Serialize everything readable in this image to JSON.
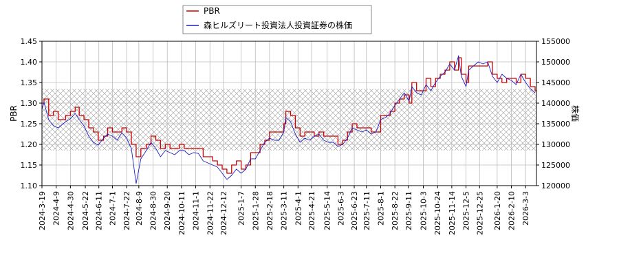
{
  "chart_data": {
    "type": "line",
    "title": "",
    "xlabel": "",
    "ylabel_left": "PBR",
    "ylabel_right": "株価",
    "ylim_left": [
      1.1,
      1.45
    ],
    "ylim_right": [
      120000,
      155000
    ],
    "yticks_left": [
      "1.10",
      "1.15",
      "1.20",
      "1.25",
      "1.30",
      "1.35",
      "1.40",
      "1.45"
    ],
    "yticks_right": [
      "120000",
      "125000",
      "130000",
      "135000",
      "140000",
      "145000",
      "150000",
      "155000"
    ],
    "xlim": [
      "2024-03-19",
      "2026-03-19"
    ],
    "xticks": [
      "2024-3-19",
      "2024-4-9",
      "2024-4-30",
      "2024-5-22",
      "2024-6-11",
      "2024-7-1",
      "2024-7-22",
      "2024-8-9",
      "2024-8-30",
      "2024-9-20",
      "2024-10-11",
      "2024-11-1",
      "2024-11-22",
      "2024-12-12",
      "2025-1-7",
      "2025-1-28",
      "2025-2-18",
      "2025-3-11",
      "2025-4-1",
      "2025-4-21",
      "2025-5-14",
      "2025-6-3",
      "2025-6-23",
      "2025-7-11",
      "2025-8-1",
      "2025-8-22",
      "2025-9-11",
      "2025-10-3",
      "2025-10-24",
      "2025-11-14",
      "2025-12-5",
      "2025-12-25",
      "2026-1-20",
      "2026-2-10",
      "2026-3-3"
    ],
    "legend_placement": "top-center",
    "grid": true,
    "hatched_band_left": [
      1.185,
      1.335
    ],
    "series": [
      {
        "name": "PBR",
        "color": "#cc0000",
        "axis": "left",
        "points": [
          [
            "2024-03-19",
            1.3
          ],
          [
            "2024-03-22",
            1.31
          ],
          [
            "2024-03-29",
            1.27
          ],
          [
            "2024-04-05",
            1.28
          ],
          [
            "2024-04-12",
            1.26
          ],
          [
            "2024-04-23",
            1.27
          ],
          [
            "2024-04-30",
            1.28
          ],
          [
            "2024-05-07",
            1.29
          ],
          [
            "2024-05-13",
            1.27
          ],
          [
            "2024-05-20",
            1.26
          ],
          [
            "2024-05-27",
            1.24
          ],
          [
            "2024-06-03",
            1.23
          ],
          [
            "2024-06-10",
            1.21
          ],
          [
            "2024-06-18",
            1.22
          ],
          [
            "2024-06-24",
            1.24
          ],
          [
            "2024-07-01",
            1.23
          ],
          [
            "2024-07-08",
            1.23
          ],
          [
            "2024-07-15",
            1.24
          ],
          [
            "2024-07-22",
            1.23
          ],
          [
            "2024-07-29",
            1.2
          ],
          [
            "2024-08-05",
            1.17
          ],
          [
            "2024-08-12",
            1.19
          ],
          [
            "2024-08-20",
            1.2
          ],
          [
            "2024-08-27",
            1.22
          ],
          [
            "2024-09-03",
            1.21
          ],
          [
            "2024-09-10",
            1.19
          ],
          [
            "2024-09-17",
            1.2
          ],
          [
            "2024-09-24",
            1.19
          ],
          [
            "2024-10-01",
            1.19
          ],
          [
            "2024-10-08",
            1.2
          ],
          [
            "2024-10-15",
            1.19
          ],
          [
            "2024-10-22",
            1.19
          ],
          [
            "2024-10-29",
            1.19
          ],
          [
            "2024-11-05",
            1.19
          ],
          [
            "2024-11-12",
            1.17
          ],
          [
            "2024-11-19",
            1.17
          ],
          [
            "2024-11-26",
            1.16
          ],
          [
            "2024-12-03",
            1.15
          ],
          [
            "2024-12-10",
            1.14
          ],
          [
            "2024-12-17",
            1.13
          ],
          [
            "2024-12-24",
            1.15
          ],
          [
            "2024-12-31",
            1.16
          ],
          [
            "2025-01-07",
            1.14
          ],
          [
            "2025-01-14",
            1.15
          ],
          [
            "2025-01-21",
            1.18
          ],
          [
            "2025-01-28",
            1.18
          ],
          [
            "2025-02-04",
            1.2
          ],
          [
            "2025-02-11",
            1.21
          ],
          [
            "2025-02-18",
            1.23
          ],
          [
            "2025-02-25",
            1.23
          ],
          [
            "2025-03-04",
            1.23
          ],
          [
            "2025-03-11",
            1.25
          ],
          [
            "2025-03-14",
            1.28
          ],
          [
            "2025-03-21",
            1.27
          ],
          [
            "2025-03-28",
            1.24
          ],
          [
            "2025-04-04",
            1.22
          ],
          [
            "2025-04-11",
            1.23
          ],
          [
            "2025-04-18",
            1.23
          ],
          [
            "2025-04-25",
            1.22
          ],
          [
            "2025-05-02",
            1.23
          ],
          [
            "2025-05-09",
            1.22
          ],
          [
            "2025-05-16",
            1.22
          ],
          [
            "2025-05-23",
            1.22
          ],
          [
            "2025-05-30",
            1.2
          ],
          [
            "2025-06-06",
            1.21
          ],
          [
            "2025-06-13",
            1.23
          ],
          [
            "2025-06-20",
            1.25
          ],
          [
            "2025-06-27",
            1.24
          ],
          [
            "2025-07-04",
            1.24
          ],
          [
            "2025-07-11",
            1.24
          ],
          [
            "2025-07-18",
            1.23
          ],
          [
            "2025-07-25",
            1.23
          ],
          [
            "2025-08-01",
            1.27
          ],
          [
            "2025-08-08",
            1.27
          ],
          [
            "2025-08-15",
            1.28
          ],
          [
            "2025-08-22",
            1.3
          ],
          [
            "2025-08-29",
            1.31
          ],
          [
            "2025-09-05",
            1.32
          ],
          [
            "2025-09-12",
            1.3
          ],
          [
            "2025-09-16",
            1.35
          ],
          [
            "2025-09-23",
            1.33
          ],
          [
            "2025-09-30",
            1.33
          ],
          [
            "2025-10-07",
            1.36
          ],
          [
            "2025-10-14",
            1.34
          ],
          [
            "2025-10-21",
            1.36
          ],
          [
            "2025-10-28",
            1.37
          ],
          [
            "2025-11-04",
            1.38
          ],
          [
            "2025-11-11",
            1.4
          ],
          [
            "2025-11-18",
            1.38
          ],
          [
            "2025-11-24",
            1.41
          ],
          [
            "2025-11-28",
            1.37
          ],
          [
            "2025-12-05",
            1.35
          ],
          [
            "2025-12-09",
            1.39
          ],
          [
            "2025-12-16",
            1.39
          ],
          [
            "2025-12-23",
            1.39
          ],
          [
            "2025-12-30",
            1.39
          ],
          [
            "2026-01-06",
            1.4
          ],
          [
            "2026-01-13",
            1.37
          ],
          [
            "2026-01-20",
            1.36
          ],
          [
            "2026-01-27",
            1.35
          ],
          [
            "2026-02-03",
            1.36
          ],
          [
            "2026-02-10",
            1.36
          ],
          [
            "2026-02-17",
            1.35
          ],
          [
            "2026-02-24",
            1.37
          ],
          [
            "2026-03-03",
            1.36
          ],
          [
            "2026-03-10",
            1.34
          ],
          [
            "2026-03-17",
            1.33
          ]
        ]
      },
      {
        "name": "森ヒルズリート投資法人投資証券の株価",
        "color": "#1f1fbf",
        "axis": "right",
        "points": [
          [
            "2024-03-19",
            138500
          ],
          [
            "2024-03-22",
            140200
          ],
          [
            "2024-03-29",
            136000
          ],
          [
            "2024-04-05",
            134500
          ],
          [
            "2024-04-12",
            134000
          ],
          [
            "2024-04-23",
            135500
          ],
          [
            "2024-04-30",
            136200
          ],
          [
            "2024-05-07",
            137500
          ],
          [
            "2024-05-13",
            136000
          ],
          [
            "2024-05-20",
            134500
          ],
          [
            "2024-05-27",
            132000
          ],
          [
            "2024-06-03",
            130500
          ],
          [
            "2024-06-10",
            129800
          ],
          [
            "2024-06-18",
            131500
          ],
          [
            "2024-06-24",
            132500
          ],
          [
            "2024-07-01",
            132000
          ],
          [
            "2024-07-08",
            131000
          ],
          [
            "2024-07-15",
            132800
          ],
          [
            "2024-07-22",
            131500
          ],
          [
            "2024-07-29",
            129000
          ],
          [
            "2024-08-05",
            120500
          ],
          [
            "2024-08-12",
            126500
          ],
          [
            "2024-08-20",
            128500
          ],
          [
            "2024-08-27",
            130500
          ],
          [
            "2024-09-03",
            129000
          ],
          [
            "2024-09-10",
            127000
          ],
          [
            "2024-09-17",
            128500
          ],
          [
            "2024-09-24",
            128000
          ],
          [
            "2024-10-01",
            127500
          ],
          [
            "2024-10-08",
            128500
          ],
          [
            "2024-10-15",
            128500
          ],
          [
            "2024-10-22",
            127500
          ],
          [
            "2024-10-29",
            128000
          ],
          [
            "2024-11-05",
            127800
          ],
          [
            "2024-11-12",
            126000
          ],
          [
            "2024-11-19",
            125500
          ],
          [
            "2024-11-26",
            125000
          ],
          [
            "2024-12-03",
            124500
          ],
          [
            "2024-12-10",
            123000
          ],
          [
            "2024-12-17",
            121500
          ],
          [
            "2024-12-24",
            122500
          ],
          [
            "2024-12-31",
            124000
          ],
          [
            "2025-01-07",
            123000
          ],
          [
            "2025-01-14",
            124000
          ],
          [
            "2025-01-21",
            126500
          ],
          [
            "2025-01-28",
            126500
          ],
          [
            "2025-02-04",
            128500
          ],
          [
            "2025-02-11",
            130500
          ],
          [
            "2025-02-18",
            131500
          ],
          [
            "2025-02-25",
            131000
          ],
          [
            "2025-03-04",
            131000
          ],
          [
            "2025-03-11",
            133000
          ],
          [
            "2025-03-14",
            136500
          ],
          [
            "2025-03-21",
            135500
          ],
          [
            "2025-03-28",
            132500
          ],
          [
            "2025-04-04",
            130500
          ],
          [
            "2025-04-11",
            131500
          ],
          [
            "2025-04-18",
            131000
          ],
          [
            "2025-04-25",
            132000
          ],
          [
            "2025-05-02",
            132500
          ],
          [
            "2025-05-09",
            131000
          ],
          [
            "2025-05-16",
            130500
          ],
          [
            "2025-05-23",
            130500
          ],
          [
            "2025-05-30",
            129500
          ],
          [
            "2025-06-06",
            130000
          ],
          [
            "2025-06-13",
            131500
          ],
          [
            "2025-06-20",
            134000
          ],
          [
            "2025-06-27",
            133500
          ],
          [
            "2025-07-04",
            133000
          ],
          [
            "2025-07-11",
            133500
          ],
          [
            "2025-07-18",
            132500
          ],
          [
            "2025-07-25",
            133000
          ],
          [
            "2025-08-01",
            136000
          ],
          [
            "2025-08-08",
            136500
          ],
          [
            "2025-08-15",
            137500
          ],
          [
            "2025-08-22",
            139500
          ],
          [
            "2025-08-29",
            141000
          ],
          [
            "2025-09-05",
            142500
          ],
          [
            "2025-09-12",
            140500
          ],
          [
            "2025-09-16",
            144000
          ],
          [
            "2025-09-23",
            142500
          ],
          [
            "2025-09-30",
            142000
          ],
          [
            "2025-10-07",
            144500
          ],
          [
            "2025-10-14",
            143000
          ],
          [
            "2025-10-21",
            145000
          ],
          [
            "2025-10-28",
            146500
          ],
          [
            "2025-11-04",
            147500
          ],
          [
            "2025-11-11",
            149500
          ],
          [
            "2025-11-18",
            148000
          ],
          [
            "2025-11-24",
            151500
          ],
          [
            "2025-11-28",
            146500
          ],
          [
            "2025-12-05",
            144000
          ],
          [
            "2025-12-09",
            148000
          ],
          [
            "2025-12-16",
            149000
          ],
          [
            "2025-12-23",
            150000
          ],
          [
            "2025-12-30",
            149500
          ],
          [
            "2026-01-06",
            150000
          ],
          [
            "2026-01-13",
            146500
          ],
          [
            "2026-01-20",
            145000
          ],
          [
            "2026-01-27",
            147000
          ],
          [
            "2026-02-03",
            146000
          ],
          [
            "2026-02-10",
            145500
          ],
          [
            "2026-02-17",
            144500
          ],
          [
            "2026-02-24",
            147000
          ],
          [
            "2026-03-03",
            145000
          ],
          [
            "2026-03-10",
            143500
          ],
          [
            "2026-03-17",
            142500
          ]
        ]
      }
    ]
  },
  "legend": {
    "items": [
      {
        "label": "PBR",
        "color": "#cc0000"
      },
      {
        "label": "森ヒルズリート投資法人投資証券の株価",
        "color": "#1f1fbf"
      }
    ]
  }
}
